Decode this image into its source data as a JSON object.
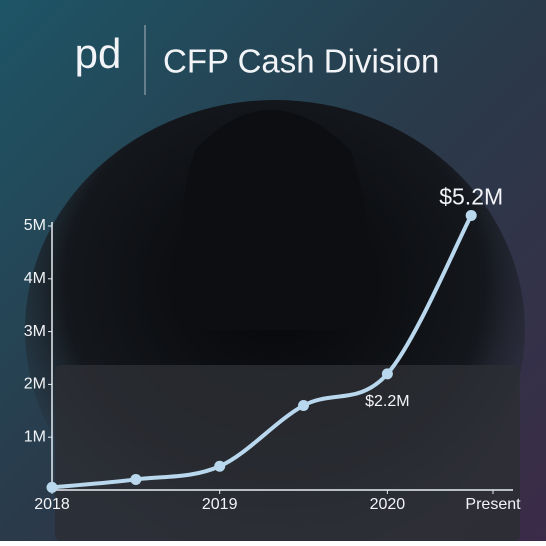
{
  "logo": "pd",
  "chart_data": {
    "type": "line",
    "title": "CFP Cash Division",
    "x": [
      2018,
      2018.5,
      2019,
      2019.5,
      2020,
      2020.5
    ],
    "values": [
      0.05,
      0.2,
      0.45,
      1.6,
      2.2,
      5.2
    ],
    "value_labels": [
      null,
      null,
      null,
      null,
      "$2.2M",
      "$5.2M"
    ],
    "color": "#b9d8ee",
    "xlim": [
      2018,
      2020.63
    ],
    "xticks": [
      2018,
      2019,
      2020,
      {
        "value": 2020.63,
        "label": "Present"
      }
    ],
    "ylim": [
      0,
      5
    ],
    "yticks": [
      {
        "value": 1,
        "label": "1M"
      },
      {
        "value": 2,
        "label": "2M"
      },
      {
        "value": 3,
        "label": "3M"
      },
      {
        "value": 4,
        "label": "4M"
      },
      {
        "value": 5,
        "label": "5M"
      }
    ]
  }
}
